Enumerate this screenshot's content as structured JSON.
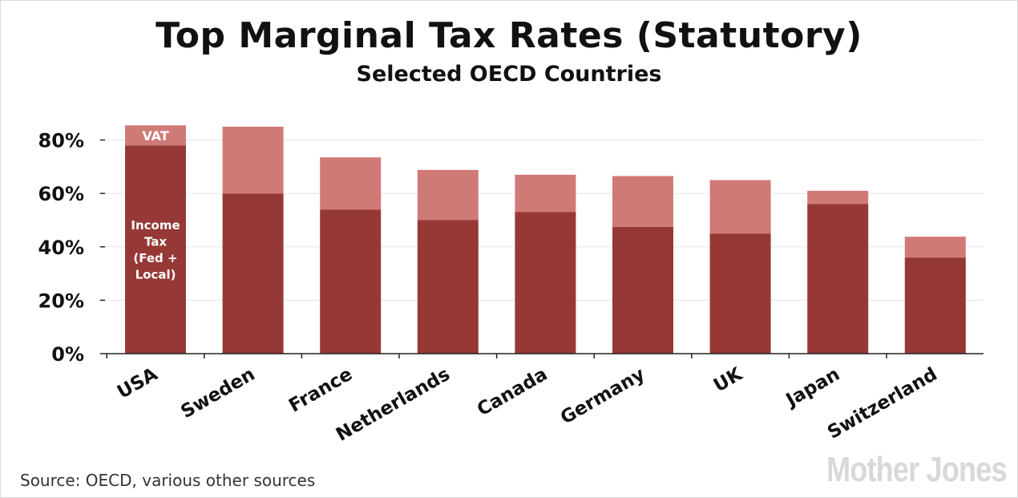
{
  "chart_data": {
    "type": "bar",
    "stacked": true,
    "title": "Top Marginal Tax Rates (Statutory)",
    "subtitle": "Selected OECD Countries",
    "categories": [
      "USA",
      "Sweden",
      "France",
      "Netherlands",
      "Canada",
      "Germany",
      "UK",
      "Japan",
      "Switzerland"
    ],
    "series": [
      {
        "name": "Income Tax (Fed + Local)",
        "color": "#963836",
        "values": [
          78,
          60,
          54,
          50,
          53,
          47.5,
          45,
          56,
          36
        ]
      },
      {
        "name": "VAT",
        "color": "#d07a78",
        "values": [
          7.5,
          25,
          19.5,
          18.8,
          14,
          19,
          20,
          5,
          7.8
        ]
      }
    ],
    "series_labels_on_first_bar": {
      "vat": "VAT",
      "income_tax": [
        "Income",
        "Tax",
        "(Fed +",
        "Local)"
      ]
    },
    "yticks": [
      "0%",
      "20%",
      "40%",
      "60%",
      "80%"
    ],
    "ytick_values": [
      0,
      20,
      40,
      60,
      80
    ],
    "ylim": [
      0,
      90
    ],
    "grid": true,
    "legend": "none"
  },
  "footer": {
    "source": "Source: OECD, various other sources",
    "logo_text": "Mother Jones"
  }
}
